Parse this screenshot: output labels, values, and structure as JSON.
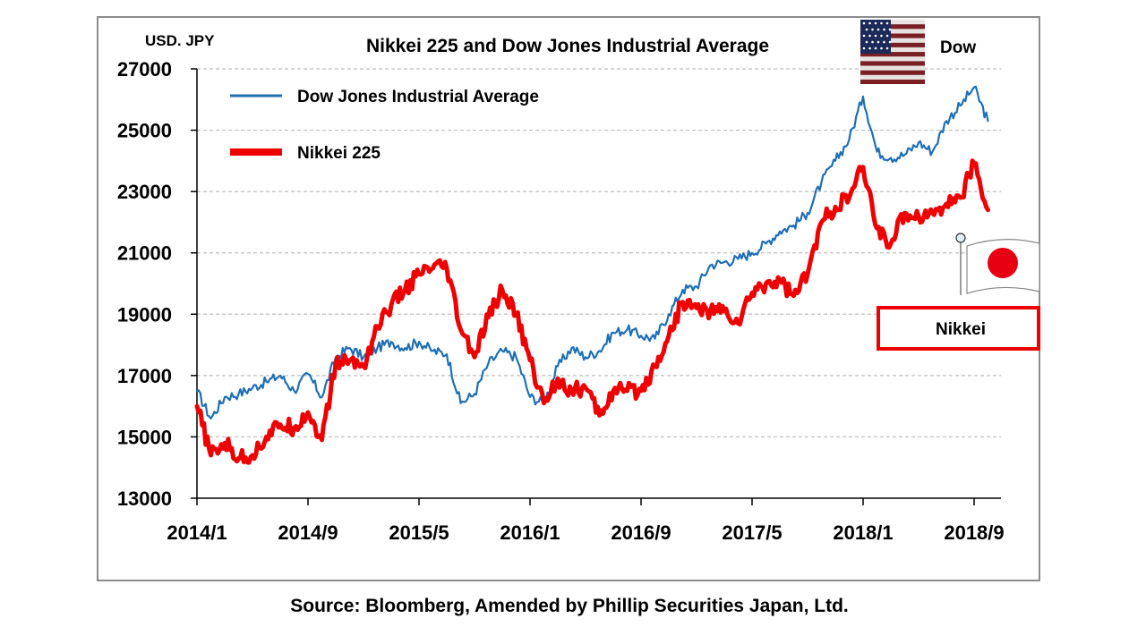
{
  "chart_data": {
    "type": "line",
    "title": "Nikkei 225 and Dow Jones Industrial Average",
    "unit_label": "USD. JPY",
    "ylim": [
      13000,
      27000
    ],
    "yticks": [
      "13000",
      "15000",
      "17000",
      "19000",
      "21000",
      "23000",
      "25000",
      "27000"
    ],
    "xticks": [
      "2014/1",
      "2014/9",
      "2015/5",
      "2016/1",
      "2016/9",
      "2017/5",
      "2018/1",
      "2018/9"
    ],
    "grid": "horizontal dashed",
    "legend_position": "top-left",
    "series": [
      {
        "name": "Dow Jones Industrial Average",
        "color": "#1f6fb4",
        "points": [
          [
            "2014/1",
            16500
          ],
          [
            "2014/2",
            15600
          ],
          [
            "2014/3",
            16300
          ],
          [
            "2014/4",
            16400
          ],
          [
            "2014/5",
            16600
          ],
          [
            "2014/6",
            16800
          ],
          [
            "2014/7",
            17000
          ],
          [
            "2014/8",
            16500
          ],
          [
            "2014/9",
            17050
          ],
          [
            "2014/10",
            16300
          ],
          [
            "2014/11",
            17600
          ],
          [
            "2014/12",
            17900
          ],
          [
            "2015/1",
            17600
          ],
          [
            "2015/2",
            17900
          ],
          [
            "2015/3",
            18100
          ],
          [
            "2015/4",
            17900
          ],
          [
            "2015/5",
            18100
          ],
          [
            "2015/6",
            17800
          ],
          [
            "2015/7",
            17700
          ],
          [
            "2015/8",
            16100
          ],
          [
            "2015/9",
            16400
          ],
          [
            "2015/10",
            17400
          ],
          [
            "2015/11",
            17800
          ],
          [
            "2015/12",
            17600
          ],
          [
            "2016/1",
            16300
          ],
          [
            "2016/2",
            16100
          ],
          [
            "2016/3",
            17300
          ],
          [
            "2016/4",
            17900
          ],
          [
            "2016/5",
            17600
          ],
          [
            "2016/6",
            17800
          ],
          [
            "2016/7",
            18400
          ],
          [
            "2016/8",
            18500
          ],
          [
            "2016/9",
            18300
          ],
          [
            "2016/10",
            18200
          ],
          [
            "2016/11",
            19000
          ],
          [
            "2016/12",
            19800
          ],
          [
            "2017/1",
            19900
          ],
          [
            "2017/2",
            20600
          ],
          [
            "2017/3",
            20700
          ],
          [
            "2017/4",
            20800
          ],
          [
            "2017/5",
            21000
          ],
          [
            "2017/6",
            21300
          ],
          [
            "2017/7",
            21700
          ],
          [
            "2017/8",
            21900
          ],
          [
            "2017/9",
            22300
          ],
          [
            "2017/10",
            23300
          ],
          [
            "2017/11",
            24000
          ],
          [
            "2017/12",
            24700
          ],
          [
            "2018/1",
            26100
          ],
          [
            "2018/2",
            24300
          ],
          [
            "2018/3",
            24100
          ],
          [
            "2018/4",
            24200
          ],
          [
            "2018/5",
            24600
          ],
          [
            "2018/6",
            24300
          ],
          [
            "2018/7",
            25300
          ],
          [
            "2018/8",
            25800
          ],
          [
            "2018/9",
            26400
          ],
          [
            "2018/10",
            25300
          ]
        ]
      },
      {
        "name": "Nikkei 225",
        "color": "#ee0000",
        "points": [
          [
            "2014/1",
            16000
          ],
          [
            "2014/2",
            14400
          ],
          [
            "2014/3",
            14800
          ],
          [
            "2014/4",
            14300
          ],
          [
            "2014/5",
            14400
          ],
          [
            "2014/6",
            15000
          ],
          [
            "2014/7",
            15400
          ],
          [
            "2014/8",
            15300
          ],
          [
            "2014/9",
            15800
          ],
          [
            "2014/10",
            14900
          ],
          [
            "2014/11",
            17400
          ],
          [
            "2014/12",
            17500
          ],
          [
            "2015/1",
            17300
          ],
          [
            "2015/2",
            18600
          ],
          [
            "2015/3",
            19300
          ],
          [
            "2015/4",
            19800
          ],
          [
            "2015/5",
            20300
          ],
          [
            "2015/6",
            20500
          ],
          [
            "2015/7",
            20500
          ],
          [
            "2015/8",
            18500
          ],
          [
            "2015/9",
            17600
          ],
          [
            "2015/10",
            18900
          ],
          [
            "2015/11",
            19800
          ],
          [
            "2015/12",
            19000
          ],
          [
            "2016/1",
            17500
          ],
          [
            "2016/2",
            16100
          ],
          [
            "2016/3",
            16900
          ],
          [
            "2016/4",
            16500
          ],
          [
            "2016/5",
            16600
          ],
          [
            "2016/6",
            15700
          ],
          [
            "2016/7",
            16500
          ],
          [
            "2016/8",
            16500
          ],
          [
            "2016/9",
            16500
          ],
          [
            "2016/10",
            17300
          ],
          [
            "2016/11",
            18300
          ],
          [
            "2016/12",
            19400
          ],
          [
            "2017/1",
            19200
          ],
          [
            "2017/2",
            19100
          ],
          [
            "2017/3",
            19100
          ],
          [
            "2017/4",
            18700
          ],
          [
            "2017/5",
            19700
          ],
          [
            "2017/6",
            20000
          ],
          [
            "2017/7",
            20100
          ],
          [
            "2017/8",
            19600
          ],
          [
            "2017/9",
            20300
          ],
          [
            "2017/10",
            22000
          ],
          [
            "2017/11",
            22500
          ],
          [
            "2017/12",
            22800
          ],
          [
            "2018/1",
            23800
          ],
          [
            "2018/2",
            21800
          ],
          [
            "2018/3",
            21300
          ],
          [
            "2018/4",
            22300
          ],
          [
            "2018/5",
            22200
          ],
          [
            "2018/6",
            22300
          ],
          [
            "2018/7",
            22600
          ],
          [
            "2018/8",
            22800
          ],
          [
            "2018/9",
            23900
          ],
          [
            "2018/10",
            22400
          ]
        ]
      }
    ],
    "flag_labels": {
      "dow": "Dow",
      "nikkei": "Nikkei"
    },
    "source": "Source: Bloomberg, Amended by Phillip Securities Japan, Ltd."
  }
}
